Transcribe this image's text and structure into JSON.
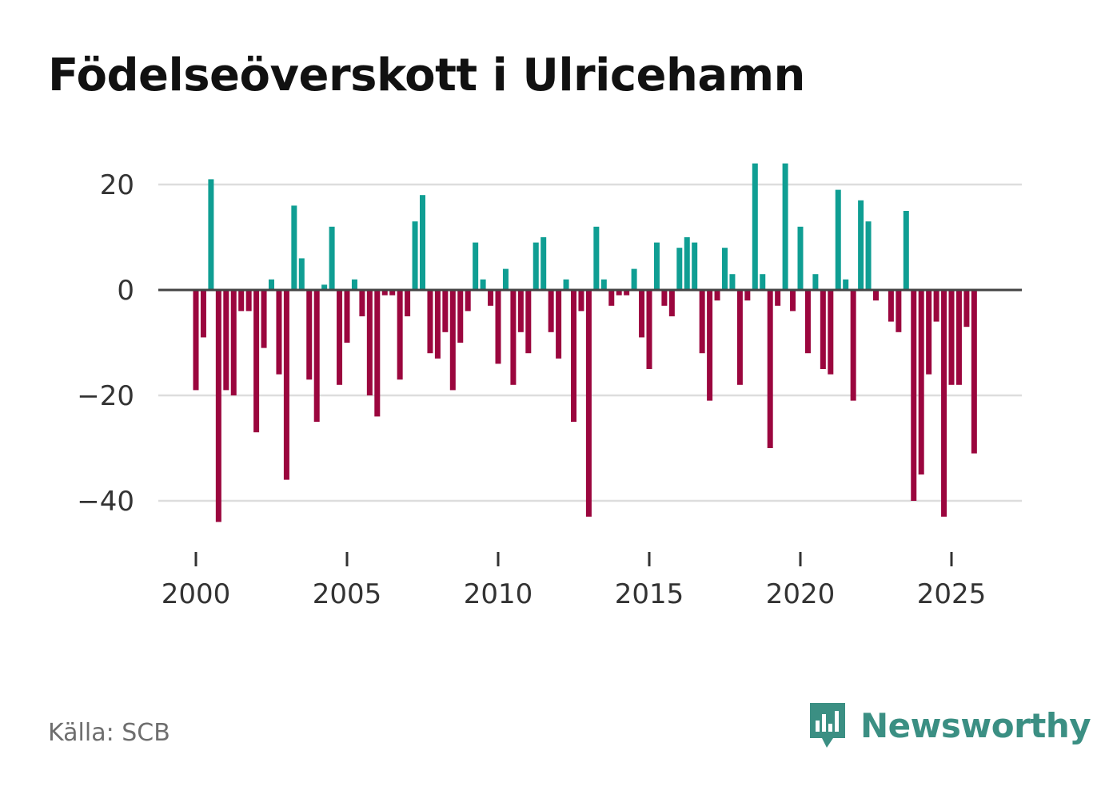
{
  "chart_data": {
    "type": "bar",
    "title": "Födelseöverskott i Ulricehamn",
    "xlabel": "",
    "ylabel": "",
    "x_start": 2000.0,
    "x_step": 0.25,
    "values": [
      -19,
      -9,
      21,
      -44,
      -19,
      -20,
      -4,
      -4,
      -27,
      -11,
      2,
      -16,
      -36,
      16,
      6,
      -17,
      -25,
      1,
      12,
      -18,
      -10,
      2,
      -5,
      -20,
      -24,
      -1,
      -1,
      -17,
      -5,
      13,
      18,
      -12,
      -13,
      -8,
      -19,
      -10,
      -4,
      9,
      2,
      -3,
      -14,
      4,
      -18,
      -8,
      -12,
      9,
      10,
      -8,
      -13,
      2,
      -25,
      -4,
      -43,
      12,
      2,
      -3,
      -1,
      -1,
      4,
      -9,
      -15,
      9,
      -3,
      -5,
      8,
      10,
      9,
      -12,
      -21,
      -2,
      8,
      3,
      -18,
      -2,
      24,
      3,
      -30,
      -3,
      24,
      -4,
      12,
      -12,
      3,
      -15,
      -16,
      19,
      2,
      -21,
      17,
      13,
      -2,
      0,
      -6,
      -8,
      15,
      -40,
      -35,
      -16,
      -6,
      -43,
      -18,
      -18,
      -7,
      -31
    ],
    "ylim": [
      -50,
      25
    ],
    "yticks": [
      20,
      0,
      -20,
      -40
    ],
    "ytick_labels": [
      "20",
      "0",
      "−20",
      "−40"
    ],
    "xticks": [
      2000,
      2005,
      2010,
      2015,
      2020,
      2025
    ],
    "xtick_labels": [
      "2000",
      "2005",
      "2010",
      "2015",
      "2020",
      "2025"
    ],
    "grid": true,
    "colors": {
      "positive": "#0f9e93",
      "negative": "#9b063e",
      "zero_line": "#444444",
      "grid": "#dddddd"
    }
  },
  "footer": {
    "source": "Källa: SCB",
    "brand": "Newsworthy",
    "brand_color": "#3b8f83",
    "brand_icon": "bar-chart-speech-bubble-icon"
  }
}
